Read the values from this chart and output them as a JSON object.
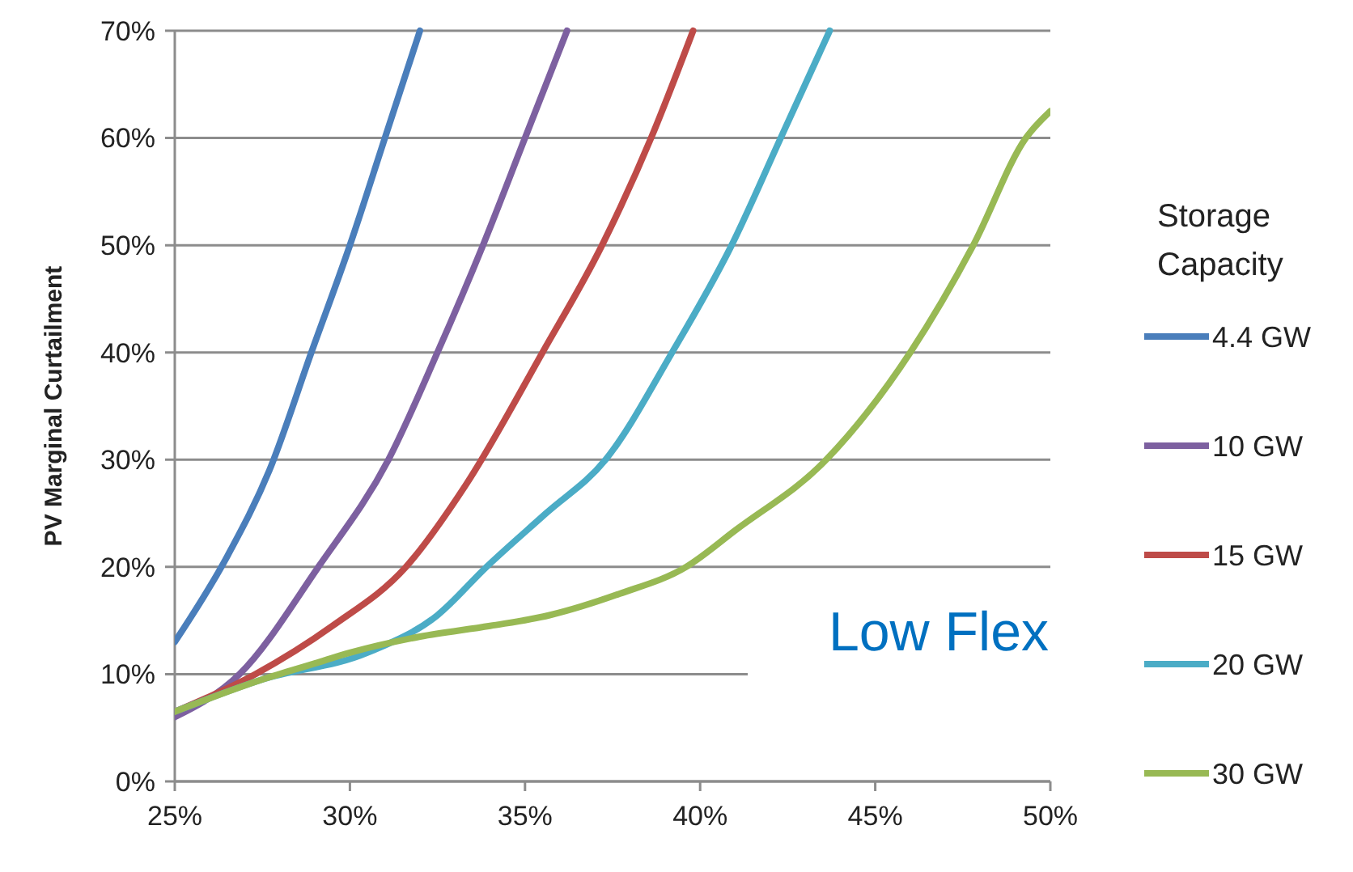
{
  "chart_data": {
    "type": "line",
    "ylabel": "PV Marginal Curtailment",
    "legend_title": "Storage Capacity",
    "annotations": [
      "Low Flex"
    ],
    "xlim": [
      25,
      50
    ],
    "xticks": [
      {
        "value": 25,
        "label": "25%"
      },
      {
        "value": 30,
        "label": "30%"
      },
      {
        "value": 35,
        "label": "35%"
      },
      {
        "value": 40,
        "label": "40%"
      },
      {
        "value": 45,
        "label": "45%"
      },
      {
        "value": 50,
        "label": "50%"
      }
    ],
    "ylim": [
      0,
      70
    ],
    "yticks": [
      {
        "value": 0,
        "label": "0%"
      },
      {
        "value": 10,
        "label": "10%"
      },
      {
        "value": 20,
        "label": "20%"
      },
      {
        "value": 30,
        "label": "30%"
      },
      {
        "value": 40,
        "label": "40%"
      },
      {
        "value": 50,
        "label": "50%"
      },
      {
        "value": 60,
        "label": "60%"
      },
      {
        "value": 70,
        "label": "70%"
      }
    ],
    "grid": "y",
    "legend": "right",
    "line_style": "solid",
    "series": [
      {
        "name": "4.4 GW",
        "color": "#4a7ebb",
        "x": [
          25,
          26.5,
          27.7,
          28.9,
          30,
          31,
          32
        ],
        "values": [
          13,
          21,
          29,
          40,
          50,
          60,
          70
        ]
      },
      {
        "name": "10 GW",
        "color": "#7d60a0",
        "x": [
          25,
          26.85,
          29.1,
          31.1,
          32.5,
          33.8,
          35,
          36.2
        ],
        "values": [
          6,
          10,
          20,
          30,
          40,
          50,
          60,
          70
        ]
      },
      {
        "name": "15 GW",
        "color": "#be4b48",
        "x": [
          25,
          27.3,
          29.5,
          31.6,
          33.3,
          35.5,
          37.2,
          38.6,
          39.8
        ],
        "values": [
          6.5,
          10,
          14.5,
          20,
          27.6,
          40,
          50,
          60,
          70
        ]
      },
      {
        "name": "20 GW",
        "color": "#4bacc6",
        "x": [
          25,
          27.5,
          30.5,
          32.5,
          33.9,
          35.6,
          37.3,
          39.2,
          40.9,
          42.3,
          43.7
        ],
        "values": [
          6.5,
          9.5,
          12,
          15.5,
          20,
          25,
          30,
          40,
          50,
          60,
          70
        ]
      },
      {
        "name": "30 GW",
        "color": "#98b954",
        "x": [
          25,
          27.5,
          29,
          30,
          32,
          34,
          35.7,
          37.7,
          39.6,
          41,
          43.6,
          46,
          47.8,
          49.3,
          50
        ],
        "values": [
          6.5,
          9.5,
          11,
          12,
          13.5,
          14.5,
          15.5,
          17.5,
          20,
          23.4,
          30,
          40,
          50,
          60,
          62.5
        ]
      }
    ]
  }
}
